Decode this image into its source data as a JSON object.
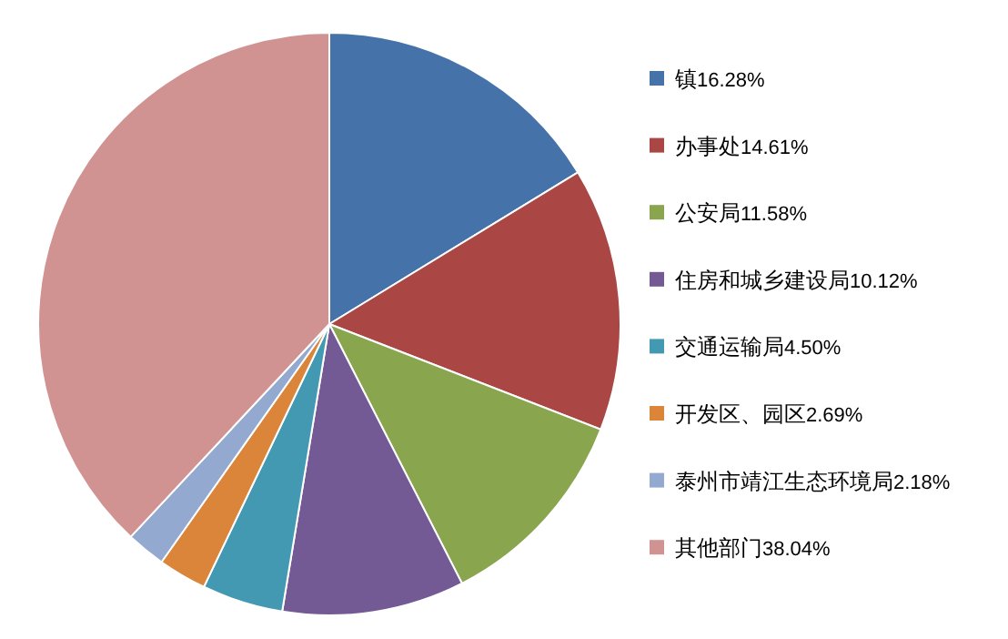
{
  "chart_data": {
    "type": "pie",
    "categories": [
      "镇",
      "办事处",
      "公安局",
      "住房和城乡建设局",
      "交通运输局",
      "开发区、园区",
      "泰州市靖江生态环境局",
      "其他部门"
    ],
    "values": [
      16.28,
      14.61,
      11.58,
      10.12,
      4.5,
      2.69,
      2.18,
      38.04
    ],
    "value_labels": [
      "16.28%",
      "14.61%",
      "11.58%",
      "10.12%",
      "4.50%",
      "2.69%",
      "2.18%",
      "38.04%"
    ],
    "colors": [
      "#4672aa",
      "#aa4744",
      "#89a54e",
      "#735a94",
      "#4399b1",
      "#da8539",
      "#93a9cf",
      "#d19392"
    ],
    "legend": "right"
  }
}
